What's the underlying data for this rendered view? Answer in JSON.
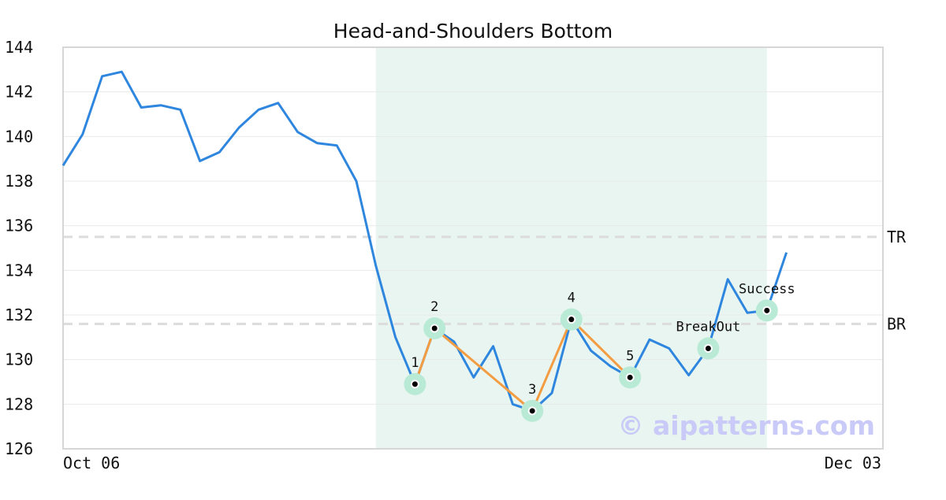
{
  "chart_data": {
    "type": "line",
    "title": "Head-and-Shoulders Bottom",
    "xlabel": "",
    "ylabel": "",
    "ylim": [
      126,
      144
    ],
    "yticks": [
      126,
      128,
      130,
      132,
      134,
      136,
      138,
      140,
      142,
      144
    ],
    "xtick_labels": [
      "Oct 06",
      "Dec 03"
    ],
    "grid": true,
    "series": [
      {
        "values": [
          138.7,
          140.1,
          142.7,
          142.9,
          141.3,
          141.4,
          141.2,
          138.9,
          139.3,
          140.4,
          141.2,
          141.5,
          140.2,
          139.7,
          139.6,
          138.0,
          134.2,
          131.0,
          128.9,
          131.4,
          130.8,
          129.2,
          130.6,
          128.0,
          127.7,
          128.5,
          131.8,
          130.4,
          129.7,
          129.2,
          130.9,
          130.5,
          129.3,
          130.5,
          133.6,
          132.1,
          132.2,
          134.8
        ],
        "color": "#2e86de"
      }
    ],
    "highlight_region": {
      "start_index": 16,
      "end_index": 36,
      "color": "#e8f5f0"
    },
    "levels": [
      {
        "name": "TR",
        "value": 135.5
      },
      {
        "name": "BR",
        "value": 131.6
      }
    ],
    "pattern_points": [
      {
        "label": "1",
        "index": 18,
        "value": 128.9
      },
      {
        "label": "2",
        "index": 19,
        "value": 131.4
      },
      {
        "label": "3",
        "index": 24,
        "value": 127.7
      },
      {
        "label": "4",
        "index": 26,
        "value": 131.8
      },
      {
        "label": "5",
        "index": 29,
        "value": 129.2
      }
    ],
    "event_points": [
      {
        "label": "BreakOut",
        "index": 33,
        "value": 130.5
      },
      {
        "label": "Success",
        "index": 36,
        "value": 132.2
      }
    ],
    "pattern_line_color": "#f39c42",
    "marker_halo_color": "#b8ead6",
    "watermark": "© aipatterns.com"
  }
}
